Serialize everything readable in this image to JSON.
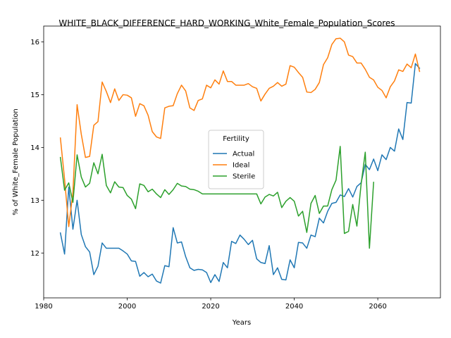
{
  "chart_data": {
    "type": "line",
    "title": "WHITE_BLACK_DIFFERENCE_HARD_WORKING_White_Female_Population_Scores",
    "xlabel": "Years",
    "ylabel": "% of White_Female Population",
    "xlim": [
      1980,
      2075
    ],
    "ylim": [
      11.15,
      16.3
    ],
    "xticks": [
      1980,
      2000,
      2020,
      2040,
      2060
    ],
    "yticks": [
      12,
      13,
      14,
      15,
      16
    ],
    "grid": false,
    "legend": {
      "title": "Fertility",
      "placement": "center"
    },
    "x": [
      1984,
      1985,
      1986,
      1987,
      1988,
      1989,
      1990,
      1991,
      1992,
      1993,
      1994,
      1995,
      1996,
      1997,
      1998,
      1999,
      2000,
      2001,
      2002,
      2003,
      2004,
      2005,
      2006,
      2007,
      2008,
      2009,
      2010,
      2011,
      2012,
      2013,
      2014,
      2015,
      2016,
      2017,
      2018,
      2019,
      2020,
      2021,
      2022,
      2023,
      2024,
      2025,
      2026,
      2027,
      2028,
      2029,
      2030,
      2031,
      2032,
      2033,
      2034,
      2035,
      2036,
      2037,
      2038,
      2039,
      2040,
      2041,
      2042,
      2043,
      2044,
      2045,
      2046,
      2047,
      2048,
      2049,
      2050,
      2051,
      2052,
      2053,
      2054,
      2055,
      2056,
      2057,
      2058,
      2059,
      2060,
      2061,
      2062,
      2063,
      2064,
      2065,
      2066,
      2067,
      2068,
      2069,
      2070
    ],
    "series": [
      {
        "name": "Actual",
        "color": "#1f77b4",
        "values": [
          12.38,
          11.98,
          13.25,
          12.45,
          13.0,
          12.35,
          12.12,
          12.02,
          11.59,
          11.75,
          12.19,
          12.09,
          12.09,
          12.09,
          12.09,
          12.04,
          11.98,
          11.85,
          11.84,
          11.56,
          11.63,
          11.55,
          11.6,
          11.47,
          11.43,
          11.76,
          11.74,
          12.48,
          12.19,
          12.21,
          11.93,
          11.72,
          11.67,
          11.69,
          11.68,
          11.63,
          11.44,
          11.59,
          11.46,
          11.82,
          11.72,
          12.22,
          12.18,
          12.34,
          12.26,
          12.16,
          12.24,
          11.89,
          11.82,
          11.8,
          12.14,
          11.59,
          11.72,
          11.5,
          11.49,
          11.87,
          11.72,
          12.2,
          12.19,
          12.09,
          12.34,
          12.31,
          12.66,
          12.57,
          12.79,
          12.94,
          12.96,
          13.1,
          13.07,
          13.22,
          13.06,
          13.26,
          13.33,
          13.68,
          13.58,
          13.78,
          13.56,
          13.86,
          13.77,
          14.0,
          13.93,
          14.35,
          14.15,
          14.85,
          14.84,
          15.59,
          15.5
        ]
      },
      {
        "name": "Ideal",
        "color": "#ff7f0e",
        "values": [
          14.18,
          13.4,
          12.5,
          13.15,
          14.81,
          14.25,
          13.81,
          13.83,
          14.42,
          14.49,
          15.24,
          15.06,
          14.85,
          15.11,
          14.89,
          15.0,
          14.99,
          14.94,
          14.59,
          14.83,
          14.79,
          14.61,
          14.3,
          14.2,
          14.17,
          14.75,
          14.78,
          14.79,
          15.02,
          15.18,
          15.07,
          14.75,
          14.7,
          14.89,
          14.92,
          15.18,
          15.13,
          15.28,
          15.2,
          15.45,
          15.25,
          15.25,
          15.18,
          15.18,
          15.18,
          15.21,
          15.15,
          15.12,
          14.88,
          15.01,
          15.12,
          15.16,
          15.23,
          15.16,
          15.2,
          15.55,
          15.52,
          15.42,
          15.33,
          15.05,
          15.04,
          15.1,
          15.23,
          15.57,
          15.7,
          15.95,
          16.06,
          16.07,
          16.0,
          15.75,
          15.72,
          15.6,
          15.6,
          15.48,
          15.33,
          15.28,
          15.14,
          15.08,
          14.94,
          15.15,
          15.26,
          15.47,
          15.44,
          15.58,
          15.51,
          15.77,
          15.44
        ]
      },
      {
        "name": "Sterile",
        "color": "#2ca02c",
        "values": [
          13.81,
          13.19,
          13.33,
          12.96,
          13.86,
          13.44,
          13.25,
          13.32,
          13.71,
          13.5,
          13.87,
          13.28,
          13.14,
          13.35,
          13.25,
          13.24,
          13.09,
          13.02,
          12.84,
          13.31,
          13.28,
          13.16,
          13.21,
          13.12,
          13.05,
          13.2,
          13.11,
          13.2,
          13.32,
          13.27,
          13.26,
          13.21,
          13.2,
          13.17,
          13.12,
          13.12,
          13.12,
          13.12,
          13.12,
          13.12,
          13.12,
          13.12,
          13.12,
          13.12,
          13.12,
          13.12,
          13.12,
          13.12,
          12.93,
          13.06,
          13.11,
          13.08,
          13.15,
          12.86,
          12.98,
          13.05,
          12.98,
          12.7,
          12.79,
          12.39,
          12.94,
          13.09,
          12.75,
          12.89,
          12.89,
          13.2,
          13.38,
          14.02,
          12.37,
          12.41,
          12.92,
          12.51,
          13.3,
          13.91,
          12.09,
          13.34,
          null,
          null,
          null,
          null,
          null,
          null,
          null,
          null,
          null,
          null,
          null
        ]
      }
    ]
  }
}
